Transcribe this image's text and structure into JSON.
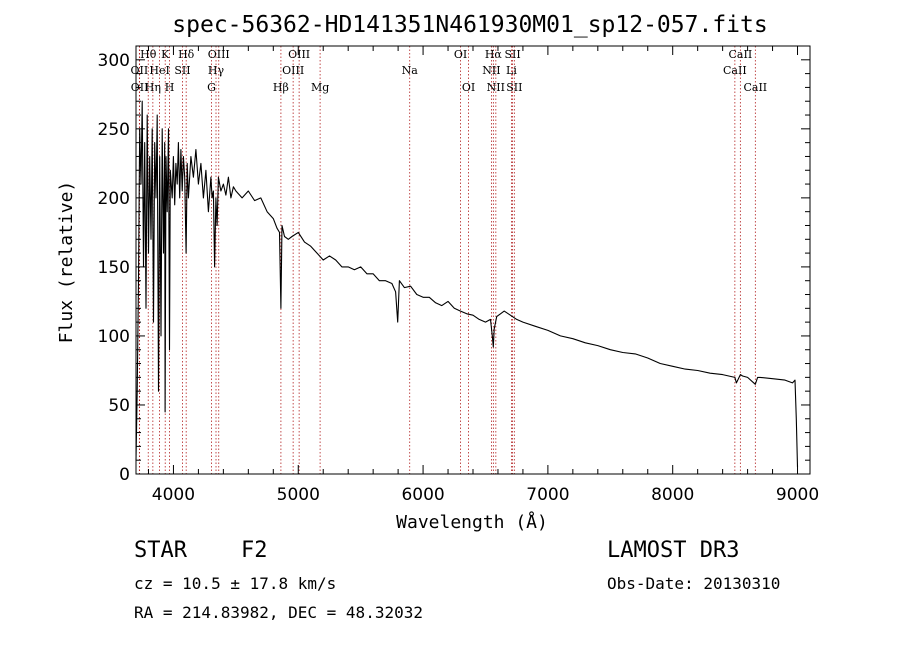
{
  "chart_data": {
    "type": "line",
    "title": "spec-56362-HD141351N461930M01_sp12-057.fits",
    "xlabel": "Wavelength (Å)",
    "ylabel": "Flux (relative)",
    "xlim": [
      3700,
      9100
    ],
    "ylim": [
      0,
      310
    ],
    "x_ticks": [
      4000,
      5000,
      6000,
      7000,
      8000,
      9000
    ],
    "y_ticks": [
      0,
      50,
      100,
      150,
      200,
      250,
      300
    ],
    "series": [
      {
        "name": "spectrum",
        "x": [
          3700,
          3710,
          3720,
          3730,
          3740,
          3750,
          3760,
          3770,
          3780,
          3790,
          3800,
          3810,
          3820,
          3830,
          3840,
          3850,
          3860,
          3870,
          3880,
          3890,
          3900,
          3910,
          3920,
          3930,
          3933,
          3940,
          3950,
          3960,
          3968,
          3975,
          3990,
          4000,
          4010,
          4020,
          4030,
          4040,
          4050,
          4060,
          4070,
          4080,
          4090,
          4101,
          4110,
          4120,
          4140,
          4160,
          4180,
          4200,
          4220,
          4240,
          4260,
          4280,
          4300,
          4310,
          4320,
          4330,
          4340,
          4350,
          4360,
          4380,
          4400,
          4420,
          4440,
          4460,
          4480,
          4500,
          4550,
          4600,
          4650,
          4700,
          4750,
          4800,
          4830,
          4850,
          4861,
          4870,
          4890,
          4920,
          4950,
          5000,
          5050,
          5100,
          5150,
          5200,
          5250,
          5300,
          5350,
          5400,
          5450,
          5500,
          5550,
          5600,
          5650,
          5700,
          5750,
          5780,
          5797,
          5810,
          5850,
          5900,
          5950,
          6000,
          6050,
          6100,
          6150,
          6200,
          6250,
          6300,
          6350,
          6400,
          6450,
          6500,
          6540,
          6555,
          6563,
          6570,
          6590,
          6620,
          6650,
          6700,
          6750,
          6800,
          6900,
          7000,
          7100,
          7200,
          7300,
          7400,
          7500,
          7600,
          7700,
          7800,
          7900,
          8000,
          8100,
          8200,
          8300,
          8400,
          8498,
          8510,
          8542,
          8560,
          8600,
          8662,
          8680,
          8700,
          8800,
          8900,
          8960,
          8980,
          8990,
          9000
        ],
        "y": [
          10,
          60,
          140,
          250,
          210,
          270,
          150,
          240,
          120,
          260,
          160,
          230,
          170,
          250,
          110,
          240,
          200,
          260,
          60,
          230,
          100,
          250,
          160,
          240,
          45,
          230,
          190,
          250,
          90,
          220,
          200,
          230,
          195,
          225,
          210,
          240,
          200,
          235,
          205,
          230,
          215,
          160,
          225,
          200,
          230,
          215,
          235,
          210,
          225,
          200,
          220,
          190,
          215,
          200,
          205,
          150,
          200,
          180,
          215,
          205,
          210,
          202,
          215,
          200,
          208,
          205,
          200,
          205,
          198,
          200,
          190,
          185,
          178,
          175,
          120,
          180,
          172,
          170,
          172,
          175,
          168,
          165,
          160,
          155,
          158,
          155,
          150,
          150,
          148,
          150,
          145,
          145,
          140,
          140,
          138,
          132,
          110,
          140,
          135,
          136,
          130,
          128,
          128,
          124,
          122,
          125,
          120,
          118,
          116,
          115,
          112,
          110,
          112,
          100,
          92,
          105,
          114,
          116,
          118,
          115,
          112,
          110,
          107,
          104,
          100,
          98,
          95,
          93,
          90,
          88,
          87,
          84,
          80,
          78,
          76,
          75,
          73,
          72,
          70,
          66,
          72,
          71,
          70,
          65,
          70,
          70,
          69,
          68,
          66,
          68,
          40,
          5
        ]
      }
    ],
    "spectral_lines": [
      {
        "label": "Hθ",
        "wavelength": 3798,
        "row": 1
      },
      {
        "label": "OII",
        "wavelength": 3727,
        "row": 2
      },
      {
        "label": "OII",
        "wavelength": 3729,
        "row": 3
      },
      {
        "label": "K",
        "wavelength": 3934,
        "row": 1
      },
      {
        "label": "HeI",
        "wavelength": 3889,
        "row": 2
      },
      {
        "label": "Hη",
        "wavelength": 3835,
        "row": 3
      },
      {
        "label": "Hδ",
        "wavelength": 4102,
        "row": 1
      },
      {
        "label": "SII",
        "wavelength": 4072,
        "row": 2
      },
      {
        "label": "H",
        "wavelength": 3969,
        "row": 3
      },
      {
        "label": "OIII",
        "wavelength": 4363,
        "row": 1
      },
      {
        "label": "Hγ",
        "wavelength": 4341,
        "row": 2
      },
      {
        "label": "G",
        "wavelength": 4305,
        "row": 3
      },
      {
        "label": "OIII",
        "wavelength": 5007,
        "row": 1
      },
      {
        "label": "OIII",
        "wavelength": 4959,
        "row": 2
      },
      {
        "label": "Hβ",
        "wavelength": 4861,
        "row": 3
      },
      {
        "label": "Mg",
        "wavelength": 5175,
        "row": 3
      },
      {
        "label": "Na",
        "wavelength": 5893,
        "row": 2
      },
      {
        "label": "OI",
        "wavelength": 6300,
        "row": 1
      },
      {
        "label": "OI",
        "wavelength": 6364,
        "row": 3
      },
      {
        "label": "Hα",
        "wavelength": 6563,
        "row": 1
      },
      {
        "label": "NII",
        "wavelength": 6548,
        "row": 2
      },
      {
        "label": "NII",
        "wavelength": 6583,
        "row": 3
      },
      {
        "label": "SII",
        "wavelength": 6717,
        "row": 1
      },
      {
        "label": "Li",
        "wavelength": 6708,
        "row": 2
      },
      {
        "label": "SII",
        "wavelength": 6731,
        "row": 3
      },
      {
        "label": "CaII",
        "wavelength": 8542,
        "row": 1
      },
      {
        "label": "CaII",
        "wavelength": 8498,
        "row": 2
      },
      {
        "label": "CaII",
        "wavelength": 8662,
        "row": 3
      }
    ]
  },
  "info": {
    "object_class": "STAR",
    "subclass": "F2",
    "survey": "LAMOST DR3",
    "redshift": "cz = 10.5 ± 17.8 km/s",
    "obs_date": "Obs-Date: 20130310",
    "coords": "RA = 214.83982, DEC =  48.32032"
  },
  "colors": {
    "line_marker": "#b22222",
    "spectrum": "#000000"
  }
}
